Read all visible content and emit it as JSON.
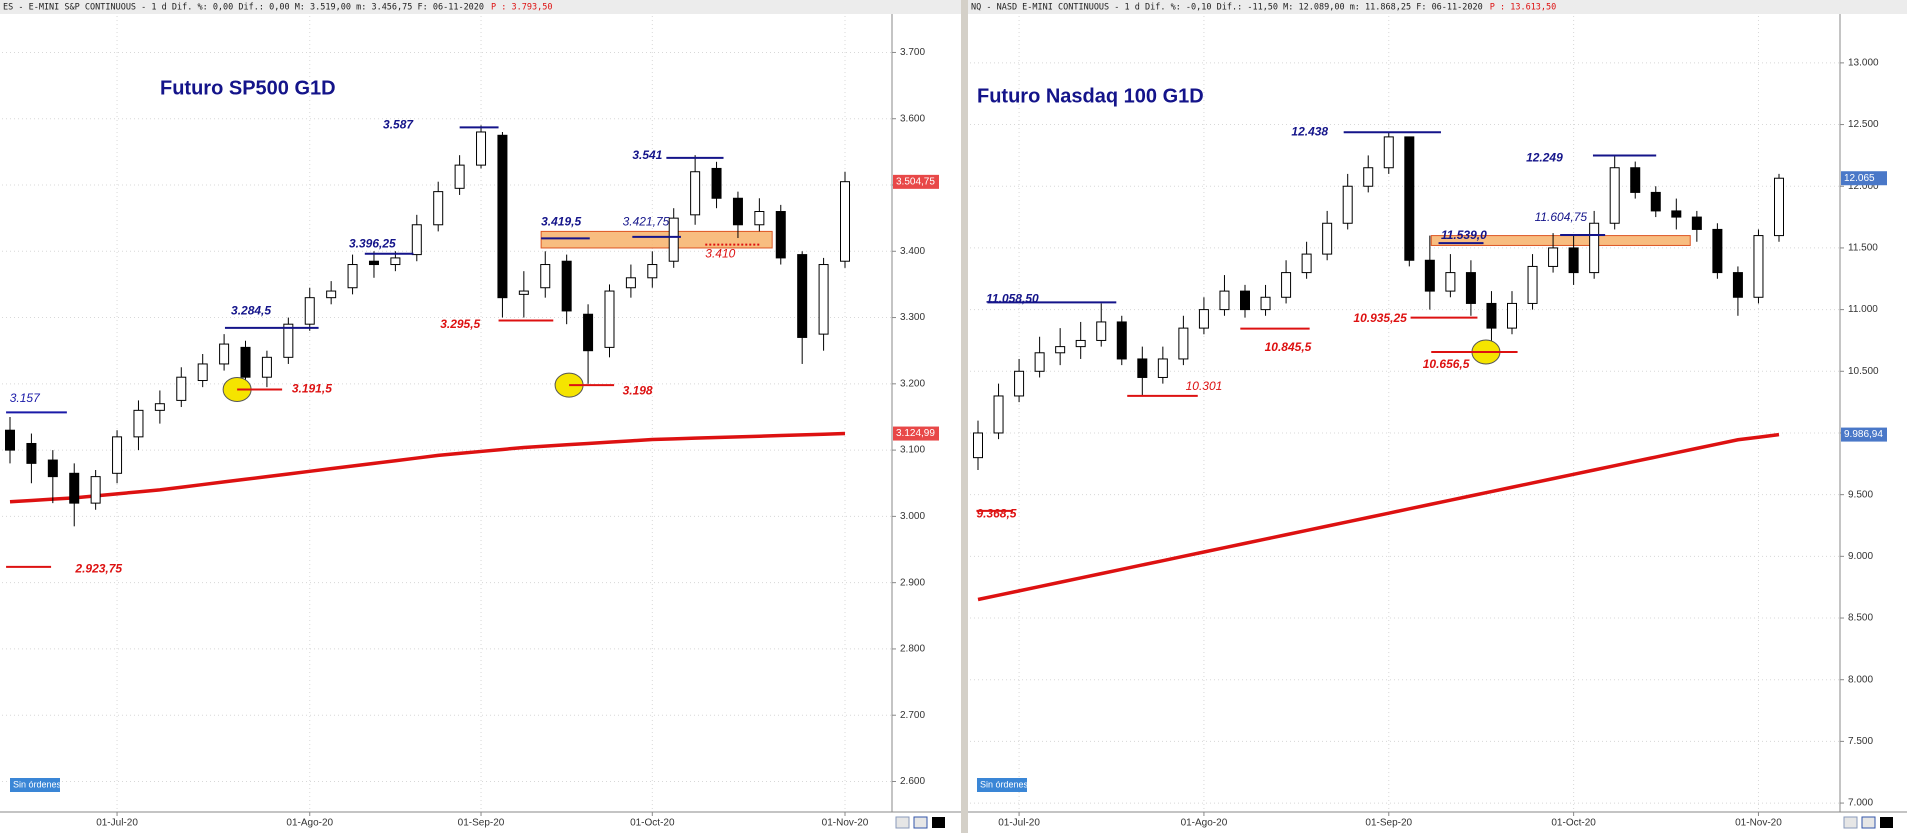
{
  "chart_data": [
    {
      "type": "candlestick",
      "title": "Futuro SP500 G1D",
      "header": "ES - E-MINI S&P CONTINUOUS -  1 d Dif. %: 0,00 Dif.: 0,00 M: 3.519,00 m: 3.456,75 F: 06-11-2020",
      "header_price": "P : 3.793,50",
      "button": "Sin órdenes",
      "categories": [
        null,
        null,
        null,
        null,
        null,
        "01-Jul-20",
        null,
        null,
        null,
        null,
        null,
        null,
        null,
        null,
        "01-Ago-20",
        null,
        null,
        null,
        null,
        null,
        null,
        null,
        "01-Sep-20",
        null,
        null,
        null,
        null,
        null,
        null,
        null,
        "01-Oct-20",
        null,
        null,
        null,
        null,
        null,
        null,
        null,
        null,
        "01-Nov-20"
      ],
      "open": [
        3130,
        3110,
        3085,
        3065,
        3020,
        3065,
        3120,
        3160,
        3175,
        3205,
        3230,
        3255,
        3210,
        3240,
        3290,
        3330,
        3345,
        3385,
        3380,
        3395,
        3440,
        3495,
        3530,
        3575,
        3335,
        3345,
        3385,
        3305,
        3255,
        3345,
        3360,
        3385,
        3455,
        3525,
        3480,
        3440,
        3460,
        3395,
        3275,
        3385
      ],
      "high": [
        3150,
        3125,
        3100,
        3080,
        3070,
        3130,
        3175,
        3190,
        3225,
        3245,
        3275,
        3265,
        3250,
        3300,
        3345,
        3355,
        3395,
        3400,
        3400,
        3455,
        3505,
        3545,
        3590,
        3580,
        3370,
        3400,
        3395,
        3320,
        3350,
        3380,
        3400,
        3465,
        3545,
        3535,
        3490,
        3480,
        3470,
        3400,
        3390,
        3520
      ],
      "low": [
        3080,
        3050,
        3020,
        2985,
        3010,
        3050,
        3100,
        3140,
        3165,
        3195,
        3220,
        3190,
        3195,
        3230,
        3280,
        3320,
        3335,
        3360,
        3370,
        3385,
        3430,
        3485,
        3525,
        3300,
        3300,
        3330,
        3290,
        3200,
        3240,
        3330,
        3345,
        3375,
        3440,
        3465,
        3420,
        3430,
        3380,
        3230,
        3250,
        3375
      ],
      "close": [
        3100,
        3080,
        3060,
        3020,
        3060,
        3120,
        3160,
        3170,
        3210,
        3230,
        3260,
        3210,
        3240,
        3290,
        3330,
        3340,
        3380,
        3380,
        3390,
        3440,
        3490,
        3530,
        3580,
        3330,
        3340,
        3380,
        3310,
        3250,
        3340,
        3360,
        3380,
        3450,
        3520,
        3480,
        3440,
        3460,
        3390,
        3270,
        3380,
        3505
      ],
      "up_color": "#ffffff",
      "down_color": "#000000",
      "ma": {
        "color": "#dd1111",
        "values": [
          3022,
          3024,
          3026,
          3028,
          3031,
          3034,
          3037,
          3040,
          3044,
          3048,
          3052,
          3056,
          3060,
          3064,
          3068,
          3072,
          3076,
          3080,
          3084,
          3088,
          3092,
          3095,
          3098,
          3101,
          3104,
          3106,
          3108,
          3110,
          3112,
          3114,
          3116,
          3117,
          3118,
          3119,
          3120,
          3121,
          3122,
          3123,
          3124,
          3125
        ]
      },
      "last_price": {
        "value": 3504.75,
        "label": "3.504,75"
      },
      "ma_price": {
        "value": 3124.99,
        "label": "3.124,99"
      },
      "zone": {
        "low": 3405,
        "high": 3430,
        "color": "#f7b26a"
      },
      "ylim": [
        2560,
        3755
      ],
      "yticks": [
        {
          "value": 2600,
          "label": "2.600"
        },
        {
          "value": 2700,
          "label": "2.700"
        },
        {
          "value": 2800,
          "label": "2.800"
        },
        {
          "value": 2900,
          "label": "2.900"
        },
        {
          "value": 3000,
          "label": "3.000"
        },
        {
          "value": 3100,
          "label": "3.100"
        },
        {
          "value": 3200,
          "label": "3.200"
        },
        {
          "value": 3300,
          "label": "3.300"
        },
        {
          "value": 3400,
          "label": "3.400"
        },
        {
          "value": 3500,
          "label": "3.500"
        },
        {
          "value": 3600,
          "label": "3.600"
        },
        {
          "value": 3700,
          "label": "3.700"
        }
      ],
      "grid": true,
      "annotations": [
        {
          "value": 3587,
          "label": "3.587",
          "color": "#14148a",
          "bold": true
        },
        {
          "value": 3541,
          "label": "3.541",
          "color": "#14148a",
          "bold": true
        },
        {
          "value": 3419.5,
          "label": "3.419,5",
          "color": "#14148a",
          "bold": true
        },
        {
          "value": 3421.75,
          "label": "3.421,75",
          "color": "#14148a",
          "bold": false
        },
        {
          "value": 3396.25,
          "label": "3.396,25",
          "color": "#14148a",
          "bold": true
        },
        {
          "value": 3284.5,
          "label": "3.284,5",
          "color": "#14148a",
          "bold": true
        },
        {
          "value": 3157,
          "label": "3.157",
          "color": "#1a1aa8",
          "bold": false
        },
        {
          "value": 3295.5,
          "label": "3.295,5",
          "color": "#dd1111",
          "bold": true
        },
        {
          "value": 3191.5,
          "label": "3.191,5",
          "color": "#dd1111",
          "bold": true,
          "highlight": "#f5e400"
        },
        {
          "value": 3198,
          "label": "3.198",
          "color": "#dd1111",
          "bold": true,
          "highlight": "#f5e400"
        },
        {
          "value": 3410,
          "label": "3.410",
          "color": "#dd1111",
          "bold": false
        },
        {
          "value": 2923.75,
          "label": "2.923,75",
          "color": "#dd1111",
          "bold": true
        }
      ]
    },
    {
      "type": "candlestick",
      "title": "Futuro Nasdaq 100 G1D",
      "header": "NQ - NASD E-MINI CONTINUOUS -  1 d Dif. %: -0,10 Dif.: -11,50 M: 12.089,00 m: 11.868,25 F: 06-11-2020",
      "header_price": "P : 13.613,50",
      "button": "Sin órdenes",
      "categories": [
        null,
        null,
        "01-Jul-20",
        null,
        null,
        null,
        null,
        null,
        null,
        null,
        null,
        "01-Ago-20",
        null,
        null,
        null,
        null,
        null,
        null,
        null,
        null,
        "01-Sep-20",
        null,
        null,
        null,
        null,
        null,
        null,
        null,
        null,
        "01-Oct-20",
        null,
        null,
        null,
        null,
        null,
        null,
        null,
        null,
        "01-Nov-20",
        null
      ],
      "open": [
        9800,
        10000,
        10300,
        10500,
        10650,
        10700,
        10750,
        10900,
        10600,
        10450,
        10600,
        10850,
        11000,
        11150,
        11000,
        11100,
        11300,
        11450,
        11700,
        12000,
        12150,
        12400,
        11400,
        11150,
        11300,
        11050,
        10850,
        11050,
        11350,
        11500,
        11300,
        11700,
        12150,
        11950,
        11800,
        11750,
        11650,
        11300,
        11100,
        11600
      ],
      "high": [
        10100,
        10400,
        10600,
        10780,
        10850,
        10900,
        11050,
        10950,
        10700,
        10700,
        10950,
        11100,
        11280,
        11200,
        11200,
        11400,
        11550,
        11800,
        12100,
        12250,
        12438,
        12400,
        11600,
        11450,
        11400,
        11150,
        11150,
        11450,
        11620,
        11600,
        11800,
        12249,
        12200,
        12000,
        11900,
        11800,
        11700,
        11350,
        11650,
        12100
      ],
      "low": [
        9700,
        9950,
        10250,
        10450,
        10550,
        10600,
        10700,
        10550,
        10301,
        10400,
        10550,
        10800,
        10950,
        10935,
        10950,
        11050,
        11250,
        11400,
        11650,
        11950,
        12100,
        11350,
        11000,
        11100,
        10950,
        10656.5,
        10800,
        11000,
        11300,
        11200,
        11250,
        11650,
        11900,
        11750,
        11650,
        11550,
        11250,
        10950,
        11050,
        11550
      ],
      "close": [
        10000,
        10300,
        10500,
        10650,
        10700,
        10750,
        10900,
        10600,
        10450,
        10600,
        10850,
        11000,
        11150,
        11000,
        11100,
        11300,
        11450,
        11700,
        12000,
        12150,
        12400,
        11400,
        11150,
        11300,
        11050,
        10850,
        11050,
        11350,
        11500,
        11300,
        11700,
        12150,
        11950,
        11800,
        11750,
        11650,
        11300,
        11100,
        11600,
        12065
      ],
      "up_color": "#ffffff",
      "down_color": "#000000",
      "ma": {
        "color": "#dd1111",
        "values": [
          8650,
          8685,
          8720,
          8755,
          8790,
          8825,
          8860,
          8895,
          8930,
          8965,
          9000,
          9035,
          9070,
          9105,
          9140,
          9175,
          9210,
          9245,
          9280,
          9315,
          9350,
          9385,
          9420,
          9455,
          9490,
          9525,
          9560,
          9595,
          9630,
          9665,
          9700,
          9735,
          9770,
          9805,
          9840,
          9875,
          9910,
          9945,
          9965,
          9987
        ]
      },
      "last_price": {
        "value": 12065,
        "label": "12.065"
      },
      "ma_price": {
        "value": 9986.94,
        "label": "9.986,94"
      },
      "zone": {
        "low": 11520,
        "high": 11600,
        "color": "#f7b26a"
      },
      "ylim": [
        6960,
        13380
      ],
      "yticks": [
        {
          "value": 7000,
          "label": "7.000"
        },
        {
          "value": 7500,
          "label": "7.500"
        },
        {
          "value": 8000,
          "label": "8.000"
        },
        {
          "value": 8500,
          "label": "8.500"
        },
        {
          "value": 9000,
          "label": "9.000"
        },
        {
          "value": 9500,
          "label": "9.500"
        },
        {
          "value": 10000,
          "label": "10.000"
        },
        {
          "value": 10500,
          "label": "10.500"
        },
        {
          "value": 11000,
          "label": "11.000"
        },
        {
          "value": 11500,
          "label": "11.500"
        },
        {
          "value": 12000,
          "label": "12.000"
        },
        {
          "value": 12500,
          "label": "12.500"
        },
        {
          "value": 13000,
          "label": "13.000"
        }
      ],
      "grid": true,
      "annotations": [
        {
          "value": 12438,
          "label": "12.438",
          "color": "#14148a",
          "bold": true
        },
        {
          "value": 12249,
          "label": "12.249",
          "color": "#14148a",
          "bold": true
        },
        {
          "value": 11604.75,
          "label": "11.604,75",
          "color": "#14148a",
          "bold": false
        },
        {
          "value": 11539,
          "label": "11.539,0",
          "color": "#14148a",
          "bold": true
        },
        {
          "value": 11058.5,
          "label": "11.058,50",
          "color": "#14148a",
          "bold": true
        },
        {
          "value": 10935.25,
          "label": "10.935,25",
          "color": "#dd1111",
          "bold": true
        },
        {
          "value": 10845.5,
          "label": "10.845,5",
          "color": "#dd1111",
          "bold": true
        },
        {
          "value": 10656.5,
          "label": "10.656,5",
          "color": "#dd1111",
          "bold": true,
          "highlight": "#f5e400"
        },
        {
          "value": 10301,
          "label": "10.301",
          "color": "#dd1111",
          "bold": false
        },
        {
          "value": 9368.5,
          "label": "9.368,5",
          "color": "#dd1111",
          "bold": true
        }
      ]
    }
  ]
}
